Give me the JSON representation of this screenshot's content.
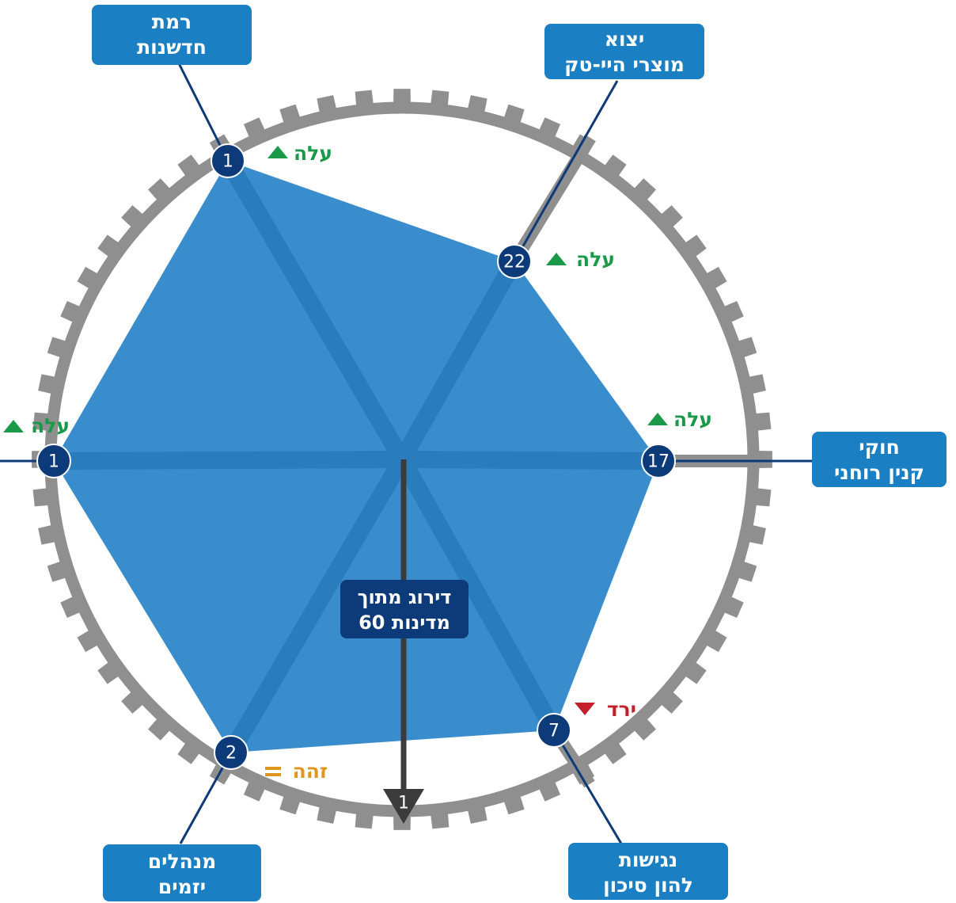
{
  "colors": {
    "polygon": "#2f87cc",
    "ring": "#8f8f8f",
    "label_box": "#1b7fc4",
    "node": "#0d3a78",
    "connector": "#0d3a78",
    "up": "#1a9a48",
    "down": "#c4202a",
    "same": "#e0951f",
    "center_box": "#0d3a78",
    "arrow": "#3b3b3b"
  },
  "center": {
    "title_line1": "דירוג מתוך",
    "title_line2": "60 מדינות",
    "scale_best": "1"
  },
  "axes": [
    {
      "id": "innovation",
      "label_line1": "רמת",
      "label_line2": "חדשנות",
      "rank": "1",
      "trend": "עלה",
      "trend_dir": "up"
    },
    {
      "id": "hightech-exports",
      "label_line1": "יצוא",
      "label_line2": "מוצרי היי-טק",
      "rank": "22",
      "trend": "עלה",
      "trend_dir": "up"
    },
    {
      "id": "ip-laws",
      "label_line1": "חוקי",
      "label_line2": "קנין רוחני",
      "rank": "17",
      "trend": "עלה",
      "trend_dir": "up"
    },
    {
      "id": "venture-capital",
      "label_line1": "נגישות",
      "label_line2": "להון סיכון",
      "rank": "7",
      "trend": "ירד",
      "trend_dir": "down"
    },
    {
      "id": "entrepreneurial-managers",
      "label_line1": "מנהלים",
      "label_line2": "יזמים",
      "rank": "2",
      "trend": "זהה",
      "trend_dir": "same"
    },
    {
      "id": "left-axis",
      "label_line1": "",
      "label_line2": "",
      "rank": "1",
      "trend": "עלה",
      "trend_dir": "up"
    }
  ]
}
